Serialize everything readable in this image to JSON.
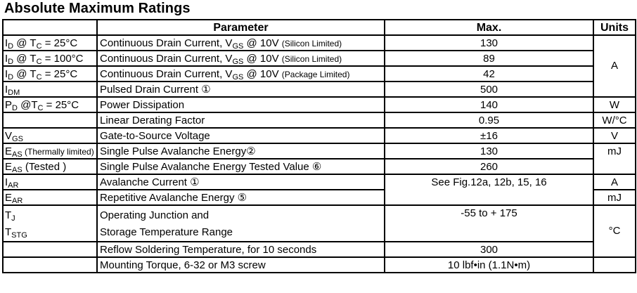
{
  "title": "Absolute Maximum Ratings",
  "header": {
    "symbol": "",
    "parameter": "Parameter",
    "max": "Max.",
    "units": "Units"
  },
  "rows": [
    {
      "symbol": [
        [
          {
            "t": "I"
          },
          {
            "t": "D",
            "sub": true
          },
          {
            "t": " @ T"
          },
          {
            "t": "C",
            "sub": true
          },
          {
            "t": " = 25°C"
          }
        ]
      ],
      "parameter": [
        [
          {
            "t": "Continuous Drain Current, V"
          },
          {
            "t": "GS",
            "sub": true
          },
          {
            "t": " @ 10V "
          },
          {
            "t": "(Silicon Limited)",
            "small": true
          }
        ]
      ],
      "max": "130",
      "units": "A"
    },
    {
      "symbol": [
        [
          {
            "t": "I"
          },
          {
            "t": "D",
            "sub": true
          },
          {
            "t": " @ T"
          },
          {
            "t": "C",
            "sub": true
          },
          {
            "t": " = 100°C"
          }
        ]
      ],
      "parameter": [
        [
          {
            "t": "Continuous Drain Current, V"
          },
          {
            "t": "GS",
            "sub": true
          },
          {
            "t": " @ 10V "
          },
          {
            "t": "(Silicon Limited)",
            "small": true
          }
        ]
      ],
      "max": "89",
      "units": null
    },
    {
      "symbol": [
        [
          {
            "t": "I"
          },
          {
            "t": "D",
            "sub": true
          },
          {
            "t": " @ T"
          },
          {
            "t": "C",
            "sub": true
          },
          {
            "t": " = 25°C"
          }
        ]
      ],
      "parameter": [
        [
          {
            "t": "Continuous Drain Current, V"
          },
          {
            "t": "GS",
            "sub": true
          },
          {
            "t": " @ 10V "
          },
          {
            "t": "(Package Limited)",
            "small": true
          }
        ]
      ],
      "max": "42",
      "units": null
    },
    {
      "symbol": [
        [
          {
            "t": "I"
          },
          {
            "t": "DM",
            "sub": true
          }
        ]
      ],
      "parameter": [
        [
          {
            "t": "Pulsed Drain Current  ①"
          }
        ]
      ],
      "max": "500",
      "units": null
    },
    {
      "symbol": [
        [
          {
            "t": "P"
          },
          {
            "t": "D",
            "sub": true
          },
          {
            "t": " @T"
          },
          {
            "t": "C",
            "sub": true
          },
          {
            "t": " = 25°C"
          }
        ]
      ],
      "parameter": [
        [
          {
            "t": "Power Dissipation"
          }
        ]
      ],
      "max": "140",
      "units": "W"
    },
    {
      "symbol": [],
      "parameter": [
        [
          {
            "t": "Linear Derating Factor"
          }
        ]
      ],
      "max": "0.95",
      "units": "W/°C"
    },
    {
      "symbol": [
        [
          {
            "t": "V"
          },
          {
            "t": "GS",
            "sub": true
          }
        ]
      ],
      "parameter": [
        [
          {
            "t": "Gate-to-Source Voltage"
          }
        ]
      ],
      "max": "±16",
      "units": "V"
    },
    {
      "symbol": [
        [
          {
            "t": "E"
          },
          {
            "t": "AS",
            "sub": true
          },
          {
            "t": " (Thermally limited)",
            "small": true
          }
        ]
      ],
      "parameter": [
        [
          {
            "t": "Single Pulse Avalanche Energy②"
          }
        ]
      ],
      "max": "130",
      "units": "mJ"
    },
    {
      "symbol": [
        [
          {
            "t": "E"
          },
          {
            "t": "AS",
            "sub": true
          },
          {
            "t": " (Tested )"
          }
        ]
      ],
      "parameter": [
        [
          {
            "t": "Single Pulse Avalanche Energy Tested Value ⑥"
          }
        ]
      ],
      "max": "260",
      "units": null
    },
    {
      "symbol": [
        [
          {
            "t": "I"
          },
          {
            "t": "AR",
            "sub": true
          }
        ]
      ],
      "parameter": [
        [
          {
            "t": "Avalanche Current   ①"
          }
        ]
      ],
      "max": "See Fig.12a, 12b, 15, 16",
      "units": "A"
    },
    {
      "symbol": [
        [
          {
            "t": "E"
          },
          {
            "t": "AR",
            "sub": true
          }
        ]
      ],
      "parameter": [
        [
          {
            "t": "Repetitive Avalanche Energy ⑤"
          }
        ]
      ],
      "max": null,
      "units": "mJ"
    },
    {
      "symbol": [
        [
          {
            "t": "T"
          },
          {
            "t": "J",
            "sub": true
          }
        ],
        [
          {
            "t": "T"
          },
          {
            "t": "STG",
            "sub": true
          }
        ]
      ],
      "parameter": [
        [
          {
            "t": "Operating Junction and"
          }
        ],
        [
          {
            "t": "Storage Temperature Range"
          }
        ]
      ],
      "max": "-55  to + 175",
      "units": "°C"
    },
    {
      "symbol": [],
      "parameter": [
        [
          {
            "t": "Reflow Soldering Temperature, for 10 seconds"
          }
        ]
      ],
      "max": "300",
      "units": null
    },
    {
      "symbol": [],
      "parameter": [
        [
          {
            "t": "Mounting Torque, 6-32 or M3 screw"
          }
        ]
      ],
      "max": "10 lbf•in (1.1N•m)",
      "units": ""
    }
  ]
}
